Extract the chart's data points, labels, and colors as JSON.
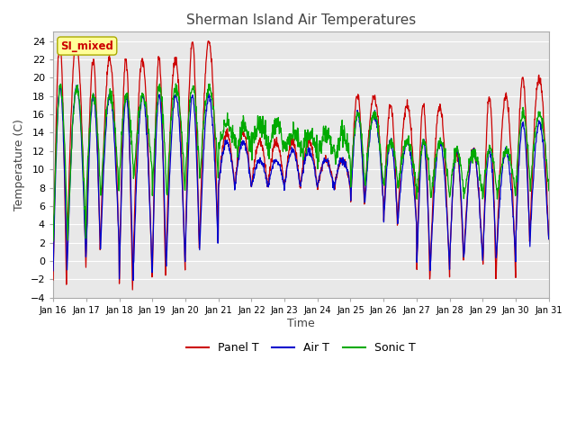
{
  "title": "Sherman Island Air Temperatures",
  "xlabel": "Time",
  "ylabel": "Temperature (C)",
  "ylim": [
    -4,
    25
  ],
  "yticks": [
    -4,
    -2,
    0,
    2,
    4,
    6,
    8,
    10,
    12,
    14,
    16,
    18,
    20,
    22,
    24
  ],
  "xlim": [
    0,
    15
  ],
  "xtick_labels": [
    "Jan 16",
    "Jan 17",
    "Jan 18",
    "Jan 19",
    "Jan 20",
    "Jan 21",
    "Jan 22",
    "Jan 23",
    "Jan 24",
    "Jan 25",
    "Jan 26",
    "Jan 27",
    "Jan 28",
    "Jan 29",
    "Jan 30",
    "Jan 31"
  ],
  "annotation_text": "SI_mixed",
  "annotation_color": "#cc0000",
  "annotation_bg": "#ffff99",
  "panel_t_color": "#cc0000",
  "air_t_color": "#0000cc",
  "sonic_t_color": "#00aa00",
  "legend_labels": [
    "Panel T",
    "Air T",
    "Sonic T"
  ],
  "title_fontsize": 11,
  "axis_fontsize": 9,
  "tick_fontsize": 8,
  "background_color": "#e8e8e8",
  "grid_color": "#ffffff"
}
